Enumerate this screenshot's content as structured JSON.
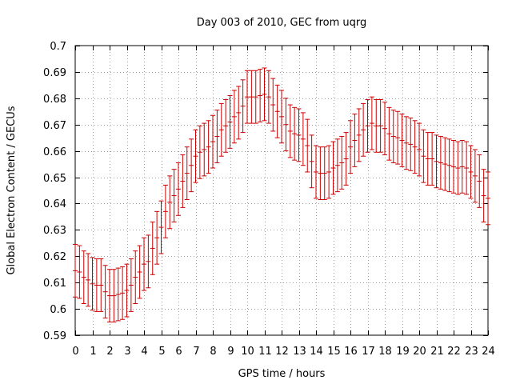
{
  "chart_data": {
    "type": "scatter",
    "title": "Day 003 of 2010, GEC from uqrg",
    "xlabel": "GPS time / hours",
    "ylabel": "Global Electron Content / GECUs",
    "xlim": [
      0,
      24
    ],
    "ylim": [
      0.59,
      0.7
    ],
    "xticks": [
      0,
      1,
      2,
      3,
      4,
      5,
      6,
      7,
      8,
      9,
      10,
      11,
      12,
      13,
      14,
      15,
      16,
      17,
      18,
      19,
      20,
      21,
      22,
      23,
      24
    ],
    "yticks": [
      0.59,
      0.6,
      0.61,
      0.62,
      0.63,
      0.64,
      0.65,
      0.66,
      0.67,
      0.68,
      0.69,
      0.7
    ],
    "ytick_labels": [
      "0.59",
      "0.6",
      "0.61",
      "0.62",
      "0.63",
      "0.64",
      "0.65",
      "0.66",
      "0.67",
      "0.68",
      "0.69",
      "0.7"
    ],
    "grid": true,
    "legend": "none",
    "error": 0.01,
    "color": "#cc0000",
    "series": [
      {
        "x": [
          0,
          0.25,
          0.5,
          0.75,
          1,
          1.25,
          1.5,
          1.75,
          2,
          2.25,
          2.5,
          2.75,
          3,
          3.25,
          3.5,
          3.75,
          4,
          4.25,
          4.5,
          4.75,
          5,
          5.25,
          5.5,
          5.75,
          6,
          6.25,
          6.5,
          6.75,
          7,
          7.25,
          7.5,
          7.75,
          8,
          8.25,
          8.5,
          8.75,
          9,
          9.25,
          9.5,
          9.75,
          10,
          10.25,
          10.5,
          10.75,
          11,
          11.25,
          11.5,
          11.75,
          12,
          12.25,
          12.5,
          12.75,
          13,
          13.25,
          13.5,
          13.75,
          14,
          14.25,
          14.5,
          14.75,
          15,
          15.25,
          15.5,
          15.75,
          16,
          16.25,
          16.5,
          16.75,
          17,
          17.25,
          17.5,
          17.75,
          18,
          18.25,
          18.5,
          18.75,
          19,
          19.25,
          19.5,
          19.75,
          20,
          20.25,
          20.5,
          20.75,
          21,
          21.25,
          21.5,
          21.75,
          22,
          22.25,
          22.5,
          22.75,
          23,
          23.25,
          23.5,
          23.75,
          24
        ],
        "y": [
          0.6145,
          0.614,
          0.612,
          0.611,
          0.6095,
          0.609,
          0.609,
          0.6065,
          0.605,
          0.605,
          0.6055,
          0.606,
          0.607,
          0.609,
          0.612,
          0.614,
          0.617,
          0.618,
          0.623,
          0.627,
          0.631,
          0.637,
          0.6405,
          0.643,
          0.6455,
          0.6485,
          0.6515,
          0.6545,
          0.658,
          0.6595,
          0.6605,
          0.6615,
          0.6635,
          0.6655,
          0.668,
          0.6695,
          0.671,
          0.673,
          0.6745,
          0.677,
          0.6805,
          0.6805,
          0.6805,
          0.681,
          0.6815,
          0.6805,
          0.6775,
          0.675,
          0.673,
          0.67,
          0.6675,
          0.6665,
          0.666,
          0.6645,
          0.662,
          0.656,
          0.652,
          0.6515,
          0.6515,
          0.652,
          0.6535,
          0.6545,
          0.6555,
          0.657,
          0.6615,
          0.664,
          0.666,
          0.668,
          0.6695,
          0.6705,
          0.6695,
          0.6695,
          0.6685,
          0.6665,
          0.6655,
          0.665,
          0.664,
          0.663,
          0.6625,
          0.6615,
          0.6605,
          0.658,
          0.657,
          0.657,
          0.656,
          0.6555,
          0.655,
          0.6545,
          0.654,
          0.6535,
          0.654,
          0.6535,
          0.652,
          0.6505,
          0.6485,
          0.643,
          0.642
        ]
      }
    ]
  }
}
